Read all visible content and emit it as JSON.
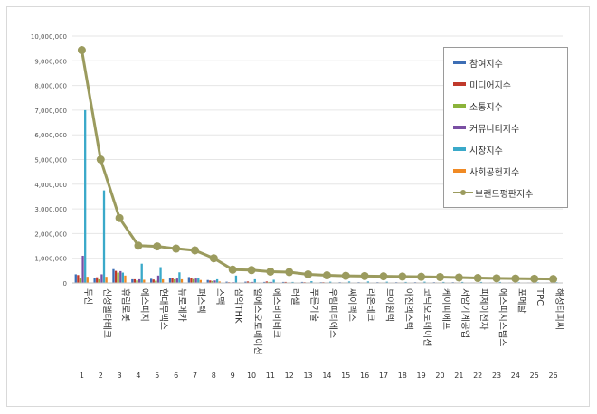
{
  "chart_data": {
    "type": "bar",
    "title": "",
    "xlabel": "",
    "ylabel": "",
    "ylim": [
      0,
      10000000
    ],
    "yticks": [
      "0",
      "1,000,000",
      "2,000,000",
      "3,000,000",
      "4,000,000",
      "5,000,000",
      "6,000,000",
      "7,000,000",
      "8,000,000",
      "9,000,000",
      "10,000,000"
    ],
    "grid": true,
    "legend_position": "top-right",
    "categories": [
      "두산",
      "신성델타테크",
      "휴림로봇",
      "에스피지",
      "현대무벡스",
      "뉴로메카",
      "퍼스텍",
      "스맥",
      "삼익THK",
      "알에스오토메이션",
      "에스비비테크",
      "러셀",
      "푸른기술",
      "우림피티에스",
      "싸이맥스",
      "라온테크",
      "브이원텍",
      "아진엑스텍",
      "코닉오토메이션",
      "케이피에프",
      "서암기계공업",
      "피제이전자",
      "에스피시스템스",
      "포메탈",
      "TPC",
      "해성티피씨"
    ],
    "ranks": [
      "1",
      "2",
      "3",
      "4",
      "5",
      "6",
      "7",
      "8",
      "9",
      "10",
      "11",
      "12",
      "13",
      "14",
      "15",
      "16",
      "17",
      "18",
      "19",
      "20",
      "21",
      "22",
      "23",
      "24",
      "25",
      "26"
    ],
    "series": [
      {
        "name": "참여지수",
        "type": "bar",
        "color": "#3d6eb5",
        "values": [
          350000,
          200000,
          560000,
          150000,
          170000,
          220000,
          240000,
          120000,
          50000,
          50000,
          40000,
          40000,
          40000,
          30000,
          30000,
          30000,
          30000,
          30000,
          30000,
          30000,
          30000,
          20000,
          20000,
          20000,
          20000,
          20000
        ]
      },
      {
        "name": "미디어지수",
        "type": "bar",
        "color": "#c0392b",
        "values": [
          320000,
          230000,
          490000,
          150000,
          140000,
          210000,
          200000,
          100000,
          30000,
          60000,
          60000,
          40000,
          30000,
          30000,
          20000,
          20000,
          20000,
          20000,
          20000,
          20000,
          20000,
          20000,
          20000,
          20000,
          20000,
          20000
        ]
      },
      {
        "name": "소통지수",
        "type": "bar",
        "color": "#8bb33a",
        "values": [
          180000,
          150000,
          420000,
          100000,
          90000,
          150000,
          160000,
          80000,
          20000,
          30000,
          40000,
          20000,
          20000,
          20000,
          20000,
          20000,
          20000,
          20000,
          20000,
          20000,
          20000,
          20000,
          20000,
          10000,
          10000,
          10000
        ]
      },
      {
        "name": "커뮤니티지수",
        "type": "bar",
        "color": "#7a4fa3",
        "values": [
          1100000,
          350000,
          480000,
          150000,
          300000,
          180000,
          180000,
          100000,
          30000,
          40000,
          40000,
          20000,
          20000,
          20000,
          20000,
          20000,
          20000,
          20000,
          20000,
          20000,
          20000,
          20000,
          20000,
          10000,
          10000,
          10000
        ]
      },
      {
        "name": "시장지수",
        "type": "bar",
        "color": "#3aa9c9",
        "values": [
          7000000,
          3750000,
          420000,
          780000,
          640000,
          430000,
          200000,
          150000,
          300000,
          150000,
          130000,
          40000,
          70000,
          50000,
          60000,
          60000,
          50000,
          40000,
          50000,
          40000,
          40000,
          40000,
          40000,
          30000,
          30000,
          30000
        ]
      },
      {
        "name": "사회공헌지수",
        "type": "bar",
        "color": "#f08a24",
        "values": [
          250000,
          250000,
          300000,
          130000,
          150000,
          150000,
          120000,
          60000,
          10000,
          20000,
          20000,
          10000,
          10000,
          10000,
          10000,
          10000,
          10000,
          10000,
          10000,
          10000,
          10000,
          10000,
          10000,
          10000,
          10000,
          10000
        ]
      },
      {
        "name": "브랜드평판지수",
        "type": "line",
        "color": "#9b9b5e",
        "values": [
          9430000,
          5000000,
          2630000,
          1510000,
          1480000,
          1390000,
          1320000,
          1000000,
          540000,
          520000,
          460000,
          440000,
          350000,
          310000,
          290000,
          280000,
          270000,
          260000,
          250000,
          240000,
          220000,
          200000,
          190000,
          180000,
          170000,
          160000
        ]
      }
    ]
  }
}
